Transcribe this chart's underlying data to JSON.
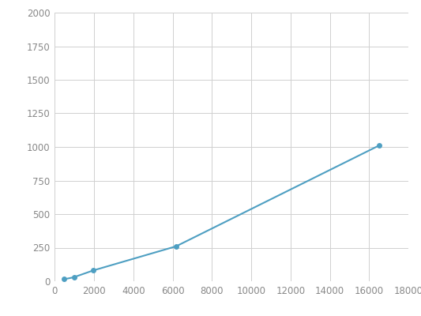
{
  "x": [
    488,
    975,
    1950,
    6175,
    16500
  ],
  "y": [
    15,
    30,
    80,
    260,
    1010
  ],
  "line_color": "#4e9fc2",
  "marker_color": "#4e9fc2",
  "marker_size": 5,
  "line_width": 1.5,
  "xlim": [
    0,
    18000
  ],
  "ylim": [
    0,
    2000
  ],
  "xticks": [
    0,
    2000,
    4000,
    6000,
    8000,
    10000,
    12000,
    14000,
    16000,
    18000
  ],
  "yticks": [
    0,
    250,
    500,
    750,
    1000,
    1250,
    1500,
    1750,
    2000
  ],
  "grid_color": "#d0d0d0",
  "background_color": "#ffffff",
  "tick_fontsize": 8.5,
  "tick_color": "#888888"
}
